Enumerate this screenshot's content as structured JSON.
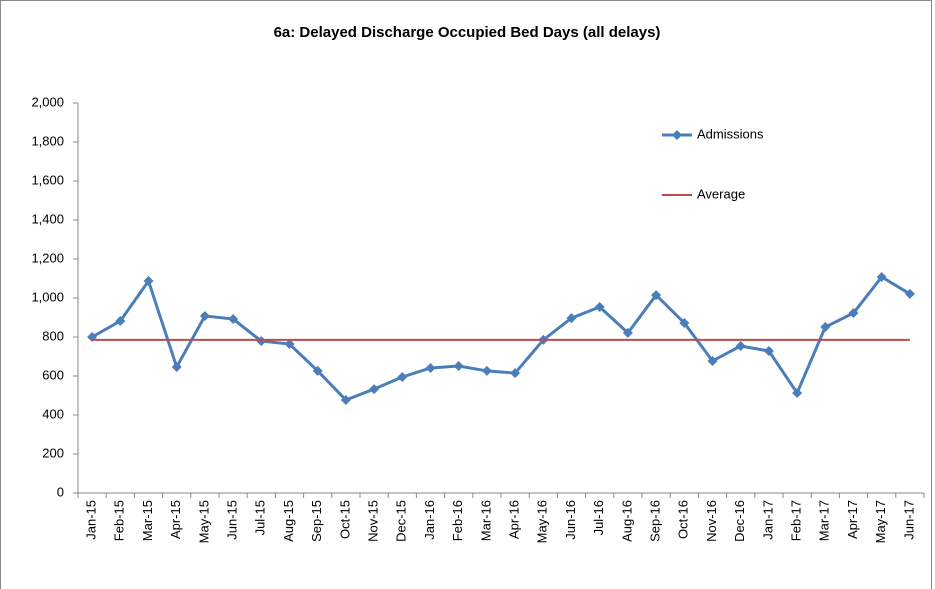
{
  "chart_data": {
    "type": "line",
    "title": "6a: Delayed Discharge Occupied Bed  Days (all delays)",
    "categories": [
      "Jan-15",
      "Feb-15",
      "Mar-15",
      "Apr-15",
      "May-15",
      "Jun-15",
      "Jul-15",
      "Aug-15",
      "Sep-15",
      "Oct-15",
      "Nov-15",
      "Dec-15",
      "Jan-16",
      "Feb-16",
      "Mar-16",
      "Apr-16",
      "May-16",
      "Jun-16",
      "Jul-16",
      "Aug-16",
      "Sep-16",
      "Oct-16",
      "Nov-16",
      "Dec-16",
      "Jan-17",
      "Feb-17",
      "Mar-17",
      "Apr-17",
      "May-17",
      "Jun-17"
    ],
    "series": [
      {
        "name": "Admissions",
        "color": "#4a7ebb",
        "marker": "diamond",
        "values": [
          800,
          882,
          1087,
          646,
          908,
          892,
          779,
          764,
          626,
          477,
          533,
          595,
          641,
          651,
          626,
          615,
          785,
          897,
          954,
          821,
          1015,
          872,
          677,
          754,
          728,
          513,
          851,
          923,
          1108,
          1021
        ]
      },
      {
        "name": "Average",
        "color": "#be4b48",
        "values": [
          785,
          785,
          785,
          785,
          785,
          785,
          785,
          785,
          785,
          785,
          785,
          785,
          785,
          785,
          785,
          785,
          785,
          785,
          785,
          785,
          785,
          785,
          785,
          785,
          785,
          785,
          785,
          785,
          785,
          785
        ]
      }
    ],
    "ylim": [
      0,
      2000
    ],
    "yticks": [
      0,
      200,
      400,
      600,
      800,
      {
        "value": 1000,
        "label": "1,000"
      },
      {
        "value": 1200,
        "label": "1,200"
      },
      {
        "value": 1400,
        "label": "1,400"
      },
      {
        "value": 1600,
        "label": "1,600"
      },
      {
        "value": 1800,
        "label": "1,800"
      },
      {
        "value": 2000,
        "label": "2,000"
      }
    ],
    "legend": "top-right"
  }
}
